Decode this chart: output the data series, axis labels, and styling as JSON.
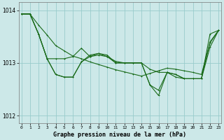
{
  "background_color": "#cce8e8",
  "grid_color": "#99cccc",
  "line_color": "#1a6b1a",
  "title": "Graphe pression niveau de la mer (hPa)",
  "ylim": [
    1011.85,
    1014.15
  ],
  "yticks": [
    1012,
    1013,
    1014
  ],
  "xlim": [
    -0.3,
    23.3
  ],
  "xticks": [
    0,
    1,
    2,
    3,
    4,
    5,
    6,
    7,
    8,
    9,
    10,
    11,
    12,
    13,
    14,
    15,
    16,
    17,
    18,
    19,
    20,
    21,
    22,
    23
  ],
  "series1_x": [
    0,
    1,
    2,
    3,
    4,
    5,
    6,
    7,
    8,
    9,
    10,
    11,
    12,
    13,
    14,
    15,
    16,
    17,
    18,
    19,
    20,
    21,
    22,
    23
  ],
  "series1_y": [
    1013.93,
    1013.93,
    1013.55,
    1013.08,
    1012.78,
    1012.73,
    1012.73,
    1013.02,
    1013.12,
    1013.15,
    1013.12,
    1013.0,
    1013.0,
    1013.0,
    1013.0,
    1012.58,
    1012.38,
    1012.82,
    1012.73,
    1012.7,
    1012.7,
    1012.7,
    1013.55,
    1013.62
  ],
  "series2_x": [
    0,
    1,
    2,
    3,
    4,
    5,
    6,
    7,
    8,
    9,
    10,
    11,
    12,
    13,
    14,
    15,
    16,
    17,
    18,
    19,
    20,
    21,
    22,
    23
  ],
  "series2_y": [
    1013.93,
    1013.93,
    1013.55,
    1013.08,
    1013.08,
    1013.08,
    1013.12,
    1013.28,
    1013.12,
    1013.18,
    1013.12,
    1013.03,
    1013.0,
    1013.0,
    1013.0,
    1012.88,
    1012.82,
    1012.82,
    1012.78,
    1012.7,
    1012.7,
    1012.7,
    1013.3,
    1013.62
  ],
  "series3_x": [
    0,
    1,
    2,
    3,
    4,
    5,
    6,
    7,
    8,
    9,
    10,
    11,
    12,
    13,
    14,
    15,
    16,
    17,
    18,
    19,
    20,
    21,
    22,
    23
  ],
  "series3_y": [
    1013.93,
    1013.93,
    1013.55,
    1013.08,
    1012.78,
    1012.73,
    1012.73,
    1013.02,
    1013.15,
    1013.18,
    1013.15,
    1013.0,
    1013.0,
    1013.0,
    1013.0,
    1012.58,
    1012.48,
    1012.82,
    1012.78,
    1012.7,
    1012.7,
    1012.7,
    1013.4,
    1013.62
  ],
  "series4_x": [
    0,
    1,
    2,
    3,
    4,
    5,
    6,
    7,
    8,
    9,
    10,
    11,
    12,
    13,
    14,
    15,
    16,
    17,
    18,
    19,
    20,
    21,
    22,
    23
  ],
  "series4_y": [
    1013.93,
    1013.93,
    1013.72,
    1013.53,
    1013.33,
    1013.23,
    1013.13,
    1013.08,
    1013.02,
    1012.97,
    1012.92,
    1012.87,
    1012.83,
    1012.79,
    1012.75,
    1012.8,
    1012.85,
    1012.9,
    1012.88,
    1012.85,
    1012.82,
    1012.78,
    1013.38,
    1013.62
  ]
}
